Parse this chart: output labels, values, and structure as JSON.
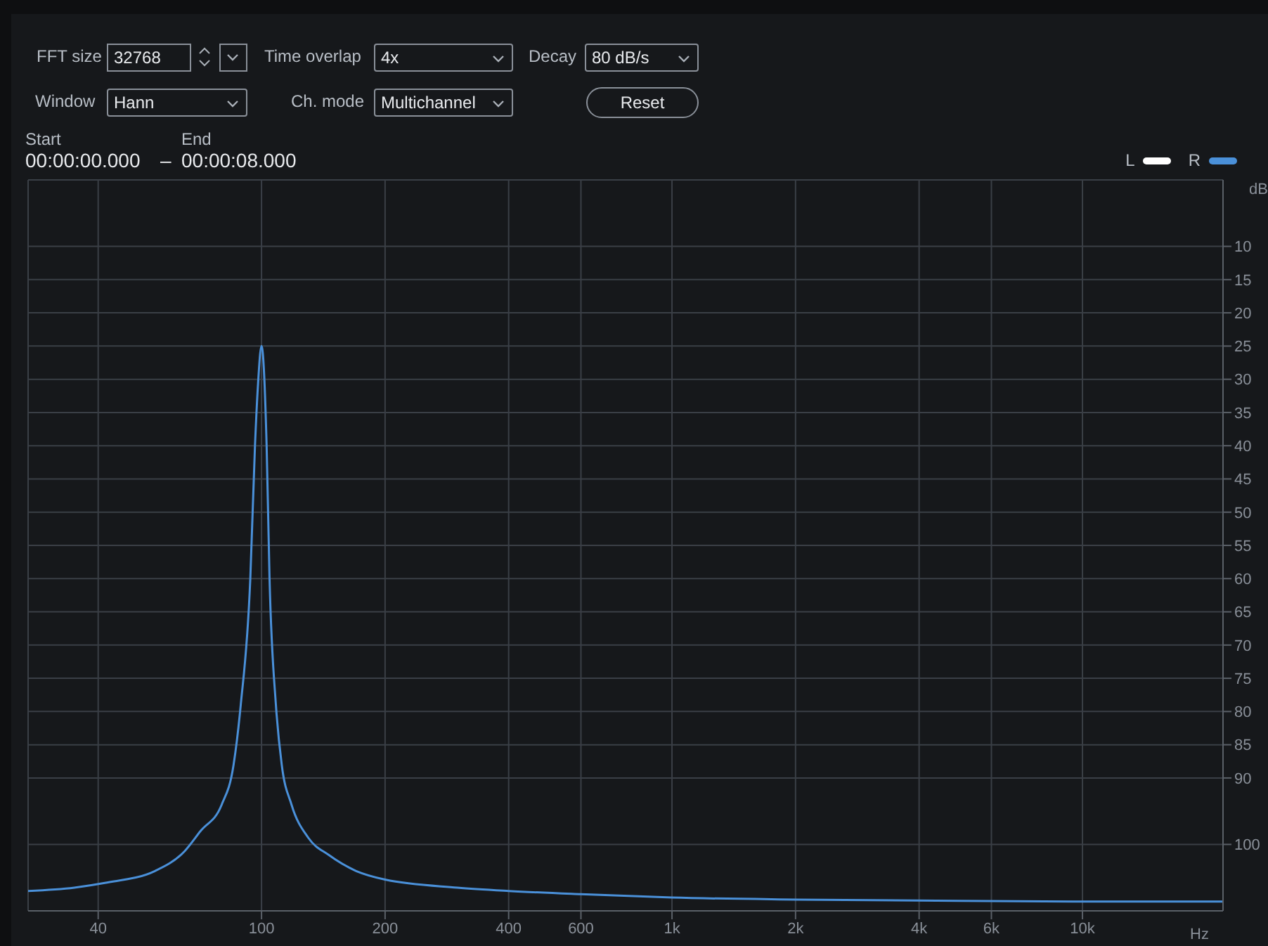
{
  "chart_data": {
    "type": "line",
    "ylabel": "dB",
    "xlabel": "Hz",
    "annotations": [
      "FFT size",
      "32768",
      "Time overlap",
      "4x",
      "Decay",
      "80 dB/s",
      "Window",
      "Hann",
      "Ch. mode",
      "Multichannel",
      "Reset",
      "Start",
      "00:00:00.000",
      "–",
      "End",
      "00:00:08.000"
    ],
    "x": [
      27,
      35,
      41.5,
      55,
      65,
      71,
      80,
      85.5,
      89,
      93.9,
      96.4,
      98,
      100,
      102.9,
      104.6,
      108.4,
      112,
      118.3,
      130,
      145.9,
      170,
      200,
      300,
      400,
      600,
      1000,
      2000,
      5000,
      10000,
      22000
    ],
    "series": [
      {
        "name": "L",
        "color": "#ffffff",
        "values": [
          null,
          null,
          null,
          null,
          null,
          null,
          null,
          null,
          null,
          null,
          null,
          null,
          null,
          null,
          null,
          null,
          null,
          null,
          null,
          null,
          null,
          null,
          null,
          null,
          null,
          null,
          null,
          null,
          null,
          null
        ]
      },
      {
        "name": "R",
        "color": "#4a90d9",
        "values": [
          107,
          106.5,
          105.8,
          104,
          101,
          98,
          94,
          88,
          79,
          60,
          40,
          31,
          25,
          40,
          60,
          79,
          88,
          94,
          99,
          101.6,
          104,
          105.3,
          106.5,
          107,
          107.5,
          108,
          108.3,
          108.5,
          108.6,
          108.6
        ]
      }
    ],
    "xlim": [
      27,
      22000
    ],
    "xticks": [
      40,
      {
        "value": 100,
        "label": "100"
      },
      200,
      400,
      600,
      {
        "value": 1000,
        "label": "1k"
      },
      {
        "value": 2000,
        "label": "2k"
      },
      {
        "value": 4000,
        "label": "4k"
      },
      {
        "value": 6000,
        "label": "6k"
      },
      {
        "value": 10000,
        "label": "10k"
      }
    ],
    "log": "x",
    "ylim": [
      110,
      0
    ],
    "yticks": [
      10,
      15,
      20,
      25,
      30,
      35,
      40,
      45,
      50,
      55,
      60,
      65,
      70,
      75,
      80,
      85,
      90,
      100
    ],
    "grid": true,
    "legend": "top right",
    "line_style": "solid",
    "marker": "none"
  }
}
